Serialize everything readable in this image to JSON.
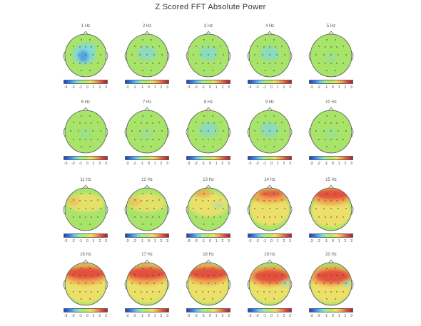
{
  "figure": {
    "title": "Z Scored FFT Absolute Power",
    "scale_ticks": [
      "-3",
      "-2",
      "-1",
      "0",
      "1",
      "2",
      "3"
    ],
    "colors": {
      "neutral": "#a8e46a",
      "deep_negative": "#2a78e6",
      "light_negative": "#7fd6e8",
      "mild_positive": "#f0e06a",
      "orange_positive": "#f2a150",
      "strong_positive": "#e04a3c"
    }
  },
  "maps": [
    {
      "label": "1 Hz",
      "state": "neutral-with-posterior-blue"
    },
    {
      "label": "2 Hz",
      "state": "neutral-light-blue"
    },
    {
      "label": "3 Hz",
      "state": "neutral-light-blue"
    },
    {
      "label": "4 Hz",
      "state": "neutral-light-blue"
    },
    {
      "label": "5 Hz",
      "state": "neutral"
    },
    {
      "label": "6 Hz",
      "state": "neutral"
    },
    {
      "label": "7 Hz",
      "state": "neutral"
    },
    {
      "label": "8 Hz",
      "state": "neutral-light-blue"
    },
    {
      "label": "9 Hz",
      "state": "neutral-light-blue"
    },
    {
      "label": "10 Hz",
      "state": "neutral"
    },
    {
      "label": "11 Hz",
      "state": "mild-positive"
    },
    {
      "label": "12 Hz",
      "state": "mild-positive"
    },
    {
      "label": "13 Hz",
      "state": "mild-positive-frontal-orange"
    },
    {
      "label": "14 Hz",
      "state": "frontal-orange-red"
    },
    {
      "label": "15 Hz",
      "state": "frontal-red"
    },
    {
      "label": "16 Hz",
      "state": "frontal-red-band"
    },
    {
      "label": "17 Hz",
      "state": "frontal-red-band"
    },
    {
      "label": "18 Hz",
      "state": "frontal-red-band"
    },
    {
      "label": "19 Hz",
      "state": "frontal-red-band-right"
    },
    {
      "label": "20 Hz",
      "state": "frontal-red-band-right"
    }
  ]
}
